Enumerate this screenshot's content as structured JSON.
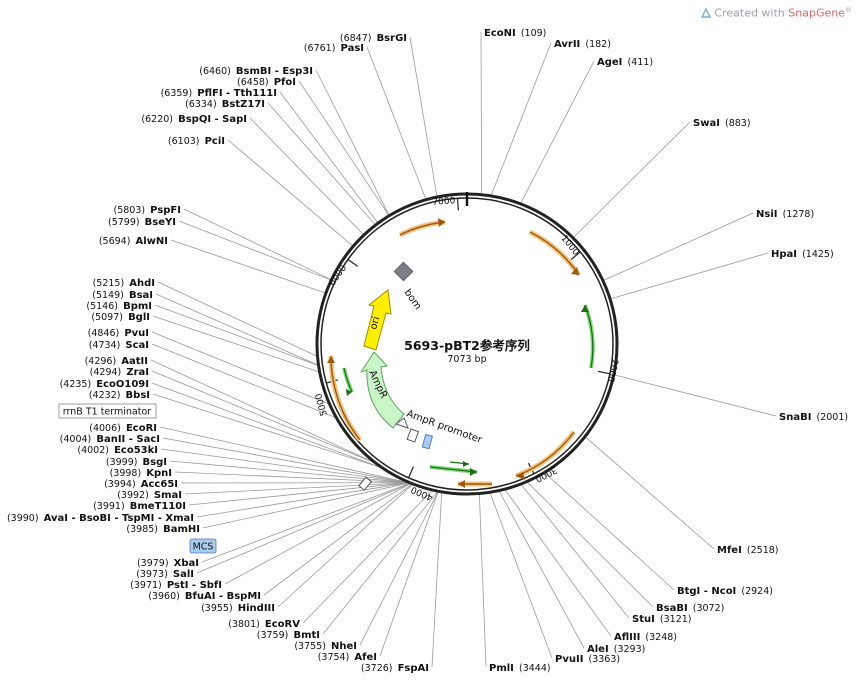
{
  "credit": {
    "prefix": "Created with ",
    "brand": "SnapGene"
  },
  "map": {
    "name": "5693-pBT2参考序列",
    "length_label": "7073 bp",
    "total_bp": 7073,
    "backbone_color": "#222222"
  },
  "tick_labels": [
    "1000",
    "2000",
    "3000",
    "4000",
    "5000",
    "6000",
    "7000"
  ],
  "features": {
    "bom": "bom",
    "ori": "ori",
    "ampr": "AmpR",
    "ampr_promoter": "AmpR promoter",
    "rrnb": "rrnB T1 terminator",
    "mcs": "MCS"
  },
  "sites": [
    {
      "name": "BsrGI",
      "pos": "(6847)"
    },
    {
      "name": "PasI",
      "pos": "(6761)"
    },
    {
      "name": "BsmBI - Esp3I",
      "pos": "(6460)"
    },
    {
      "name": "PfoI",
      "pos": "(6458)"
    },
    {
      "name": "PflFI - Tth111I",
      "pos": "(6359)"
    },
    {
      "name": "BstZ17I",
      "pos": "(6334)"
    },
    {
      "name": "BspQI - SapI",
      "pos": "(6220)"
    },
    {
      "name": "PciI",
      "pos": "(6103)"
    },
    {
      "name": "PspFI",
      "pos": "(5803)"
    },
    {
      "name": "BseYI",
      "pos": "(5799)"
    },
    {
      "name": "AlwNI",
      "pos": "(5694)"
    },
    {
      "name": "AhdI",
      "pos": "(5215)"
    },
    {
      "name": "BsaI",
      "pos": "(5149)"
    },
    {
      "name": "BpmI",
      "pos": "(5146)"
    },
    {
      "name": "BglI",
      "pos": "(5097)"
    },
    {
      "name": "PvuI",
      "pos": "(4846)"
    },
    {
      "name": "ScaI",
      "pos": "(4734)"
    },
    {
      "name": "AatII",
      "pos": "(4296)"
    },
    {
      "name": "ZraI",
      "pos": "(4294)"
    },
    {
      "name": "EcoO109I",
      "pos": "(4235)"
    },
    {
      "name": "BbsI",
      "pos": "(4232)"
    },
    {
      "name": "EcoRI",
      "pos": "(4006)"
    },
    {
      "name": "BanII - SacI",
      "pos": "(4004)"
    },
    {
      "name": "Eco53kI",
      "pos": "(4002)"
    },
    {
      "name": "BsgI",
      "pos": "(3999)"
    },
    {
      "name": "KpnI",
      "pos": "(3998)"
    },
    {
      "name": "Acc65I",
      "pos": "(3994)"
    },
    {
      "name": "SmaI",
      "pos": "(3992)"
    },
    {
      "name": "BmeT110I",
      "pos": "(3991)"
    },
    {
      "name": "AvaI - BsoBI - TspMI - XmaI",
      "pos": "(3990)"
    },
    {
      "name": "BamHI",
      "pos": "(3985)"
    },
    {
      "name": "XbaI",
      "pos": "(3979)"
    },
    {
      "name": "SalI",
      "pos": "(3973)"
    },
    {
      "name": "PstI - SbfI",
      "pos": "(3971)"
    },
    {
      "name": "BfuAI - BspMI",
      "pos": "(3960)"
    },
    {
      "name": "HindIII",
      "pos": "(3955)"
    },
    {
      "name": "EcoRV",
      "pos": "(3801)"
    },
    {
      "name": "BmtI",
      "pos": "(3759)"
    },
    {
      "name": "NheI",
      "pos": "(3755)"
    },
    {
      "name": "AfeI",
      "pos": "(3754)"
    },
    {
      "name": "FspAI",
      "pos": "(3726)"
    },
    {
      "name": "PmlI",
      "pos": "(3444)"
    },
    {
      "name": "PvuII",
      "pos": "(3363)"
    },
    {
      "name": "AleI",
      "pos": "(3293)"
    },
    {
      "name": "AflIII",
      "pos": "(3248)"
    },
    {
      "name": "StuI",
      "pos": "(3121)"
    },
    {
      "name": "BsaBI",
      "pos": "(3072)"
    },
    {
      "name": "BtgI - NcoI",
      "pos": "(2924)"
    },
    {
      "name": "MfeI",
      "pos": "(2518)"
    },
    {
      "name": "SnaBI",
      "pos": "(2001)"
    },
    {
      "name": "HpaI",
      "pos": "(1425)"
    },
    {
      "name": "NsiI",
      "pos": "(1278)"
    },
    {
      "name": "SwaI",
      "pos": "(883)"
    },
    {
      "name": "AgeI",
      "pos": "(411)"
    },
    {
      "name": "AvrII",
      "pos": "(182)"
    },
    {
      "name": "EcoNI",
      "pos": "(109)"
    }
  ]
}
